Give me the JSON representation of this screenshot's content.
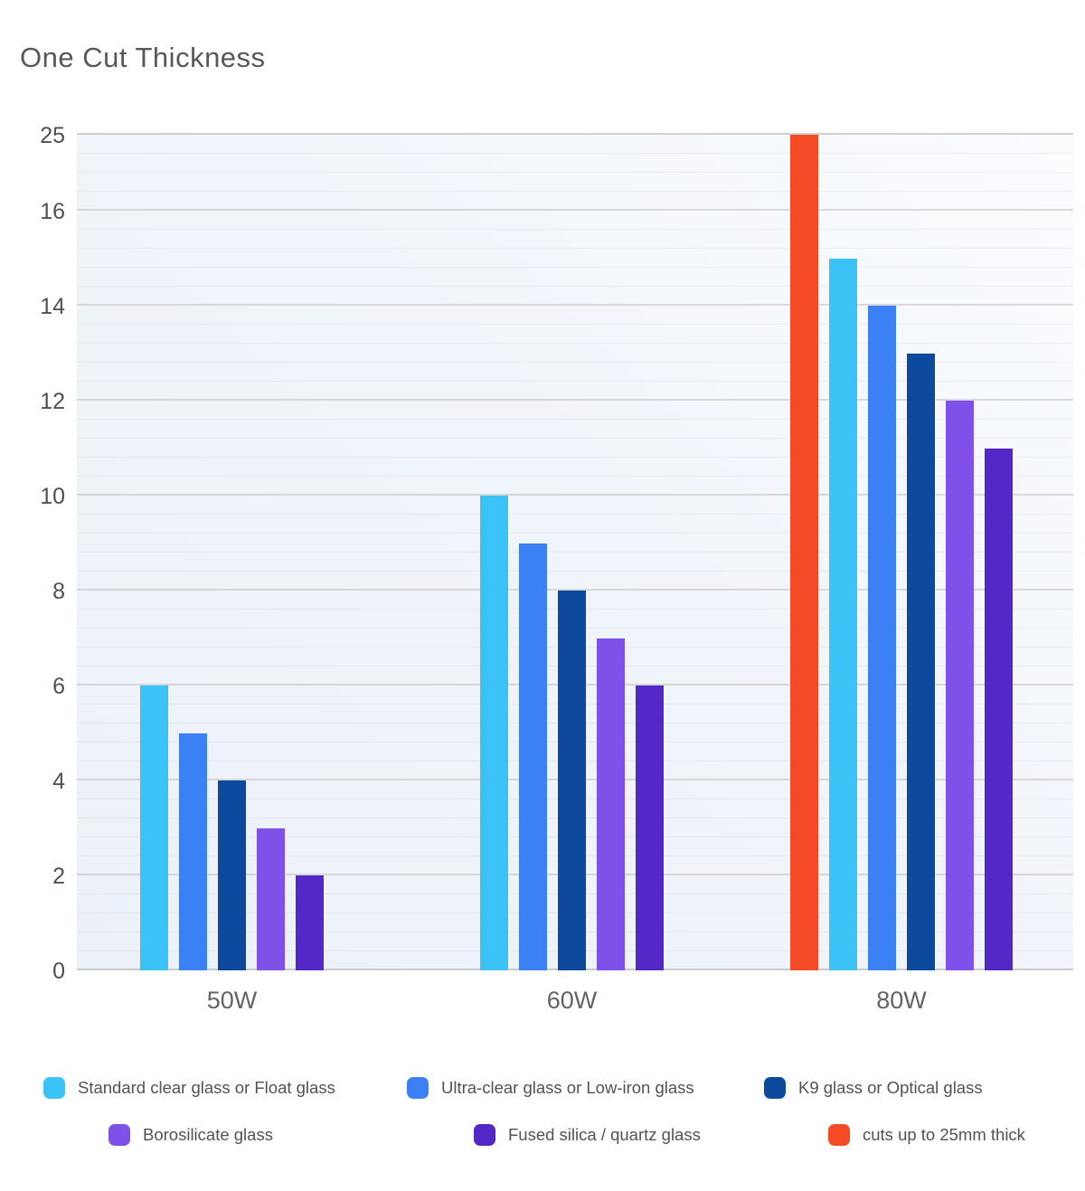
{
  "title": "One Cut Thickness",
  "chart_data": {
    "type": "bar",
    "title": "One Cut Thickness",
    "categories": [
      "50W",
      "60W",
      "80W"
    ],
    "series": [
      {
        "name": "Standard clear glass or Float glass",
        "color": "#3BC3F7",
        "values": [
          6,
          10,
          15
        ]
      },
      {
        "name": "Ultra-clear glass or Low-iron glass",
        "color": "#3C80F6",
        "values": [
          5,
          9,
          14
        ]
      },
      {
        "name": "K9 glass or Optical glass",
        "color": "#0D4A9D",
        "values": [
          4,
          8,
          13
        ]
      },
      {
        "name": "Borosilicate glass",
        "color": "#7F51E8",
        "values": [
          3,
          7,
          12
        ]
      },
      {
        "name": "Fused silica / quartz glass",
        "color": "#5428C6",
        "values": [
          2,
          6,
          11
        ]
      },
      {
        "name": "cuts up to 25mm thick",
        "color": "#F54A26",
        "values": [
          null,
          null,
          25
        ]
      }
    ],
    "y_ticks": [
      0,
      2,
      4,
      6,
      8,
      10,
      12,
      14,
      16,
      25
    ],
    "ylim": [
      0,
      25
    ],
    "xlabel": "",
    "ylabel": "",
    "grid": "horizontal minor and major gridlines; y axis compressed above 16",
    "legend_position": "bottom"
  }
}
